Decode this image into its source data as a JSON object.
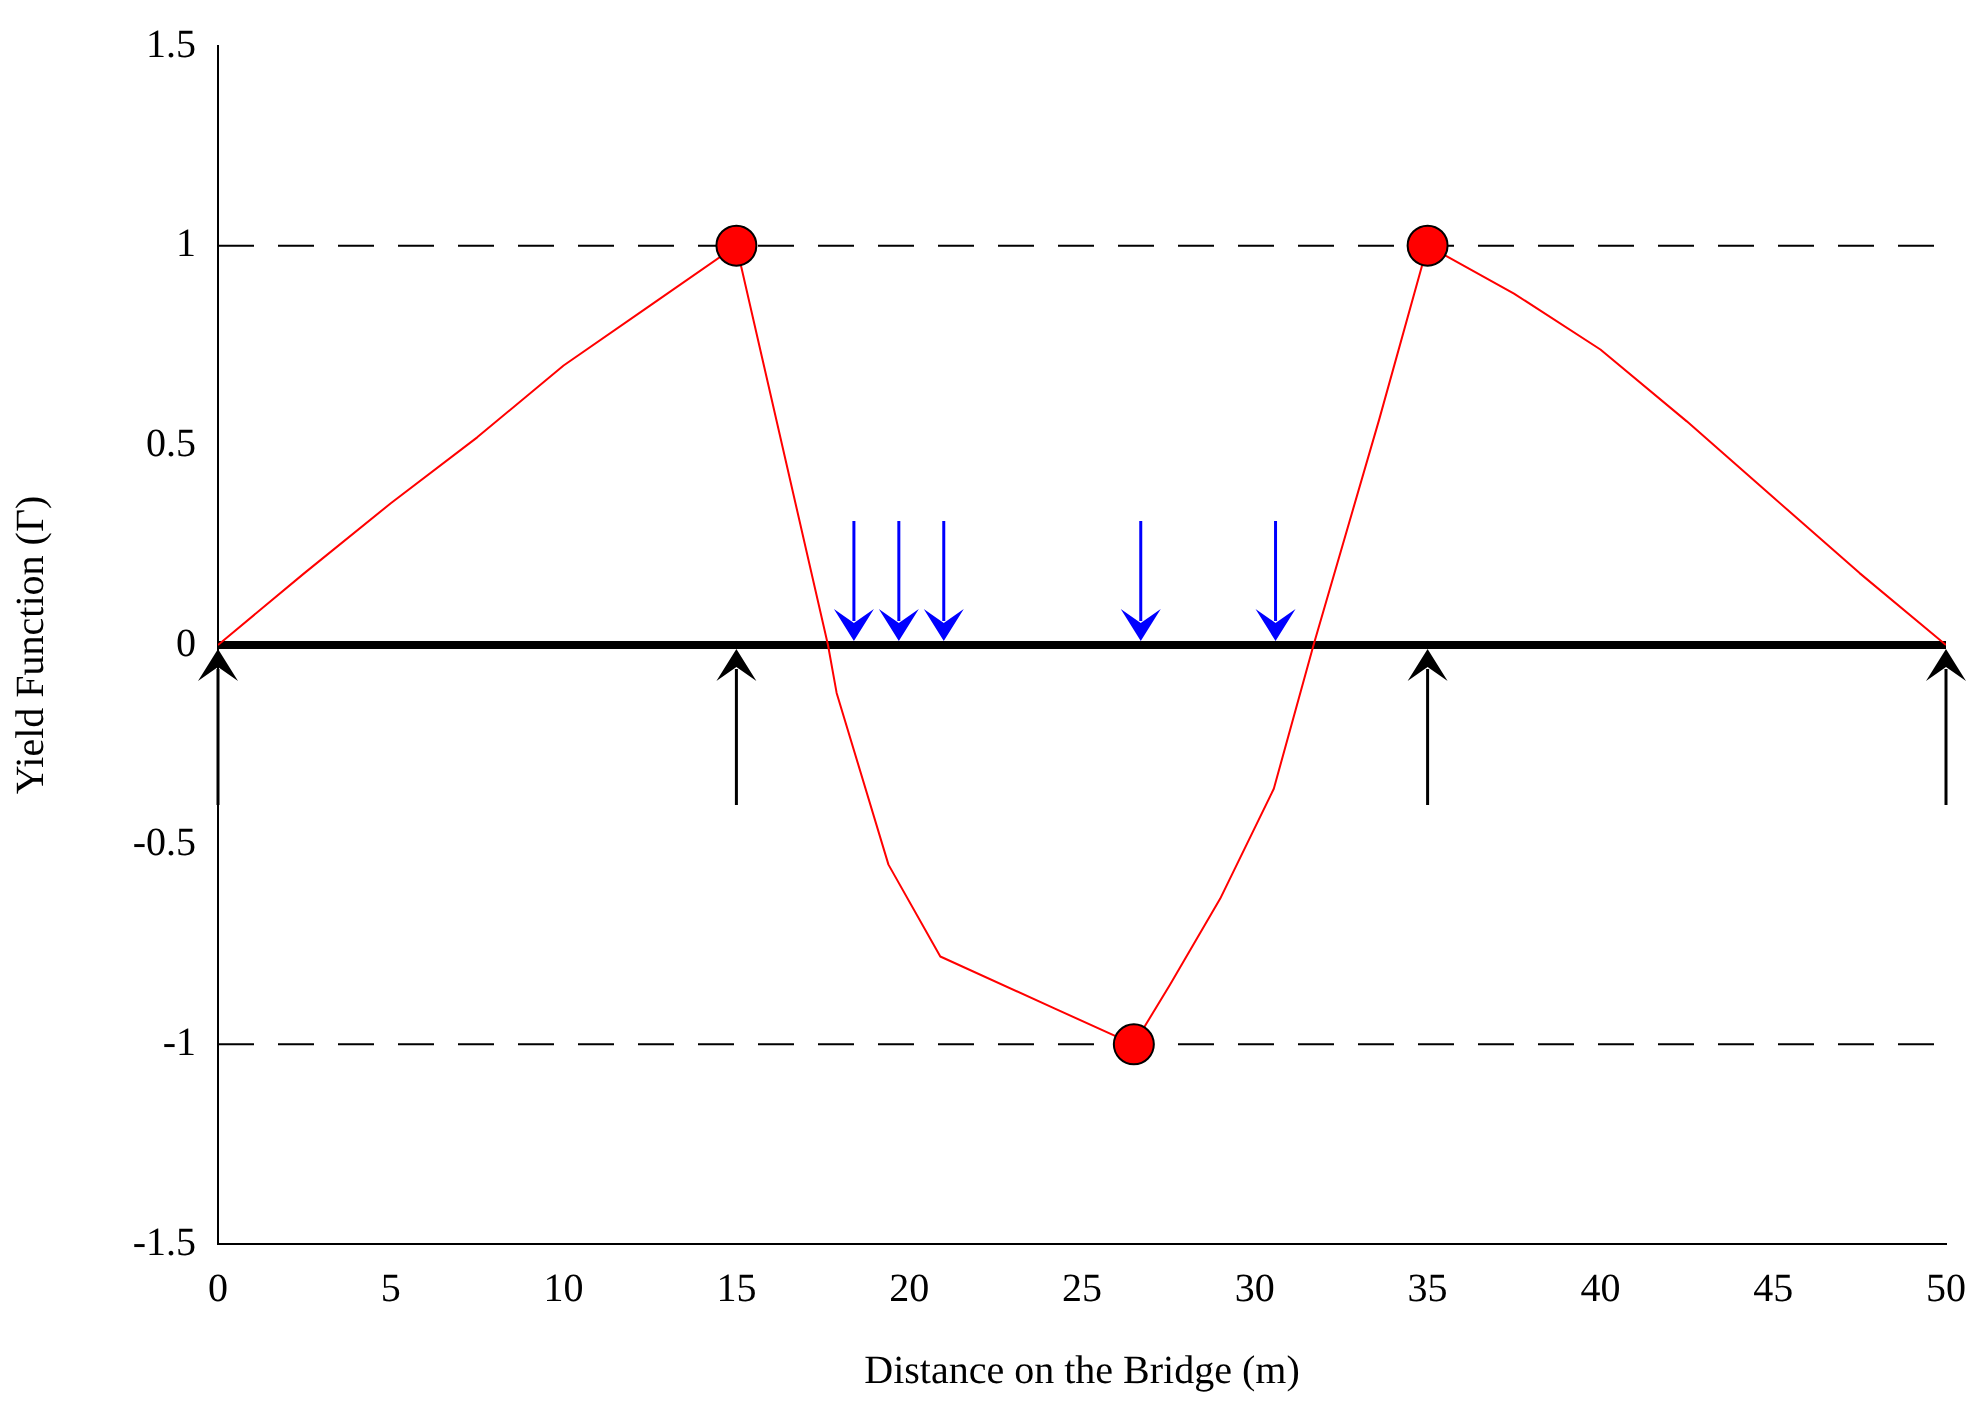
{
  "chart_data": {
    "type": "line",
    "xlabel": "Distance on the Bridge (m)",
    "ylabel": "Yield Function (Γ)",
    "xlim": [
      0,
      50
    ],
    "xticks": [
      0,
      5,
      10,
      15,
      20,
      25,
      30,
      35,
      40,
      45,
      50
    ],
    "ylim": [
      -1.5,
      1.5
    ],
    "yticks": [
      -1.5,
      -1,
      -0.5,
      0,
      0.5,
      1,
      1.5
    ],
    "grid": false,
    "legend": false,
    "series": [
      {
        "type": "line",
        "color": "#ff0000",
        "marker": "none",
        "x": [
          0,
          2.5,
          5,
          7.5,
          10,
          12.5,
          15,
          17.65,
          17.9,
          19.4,
          20.9,
          24.2,
          26.5,
          27.55,
          29.0,
          30.55,
          31.7,
          33.6,
          35,
          37.5,
          40,
          42.5,
          45,
          47.5,
          50
        ],
        "values": [
          0,
          0.18,
          0.355,
          0.52,
          0.7,
          0.85,
          1,
          0,
          -0.12,
          -0.55,
          -0.78,
          -0.91,
          -1,
          -0.85,
          -0.635,
          -0.36,
          0,
          0.565,
          1,
          0.88,
          0.74,
          0.56,
          0.37,
          0.18,
          0
        ]
      },
      {
        "type": "scatter",
        "color": "#ff0000",
        "marker": "circle",
        "x": [
          15,
          26.5,
          35
        ],
        "values": [
          1,
          -1,
          1
        ]
      }
    ],
    "ref_lines": [
      {
        "axis": "y",
        "value": 1,
        "color": "#000000",
        "line_style": "dashed"
      },
      {
        "axis": "y",
        "value": -1,
        "color": "#000000",
        "line_style": "dashed"
      },
      {
        "axis": "y",
        "value": 0,
        "color": "#000000",
        "line_style": "solid"
      }
    ]
  }
}
